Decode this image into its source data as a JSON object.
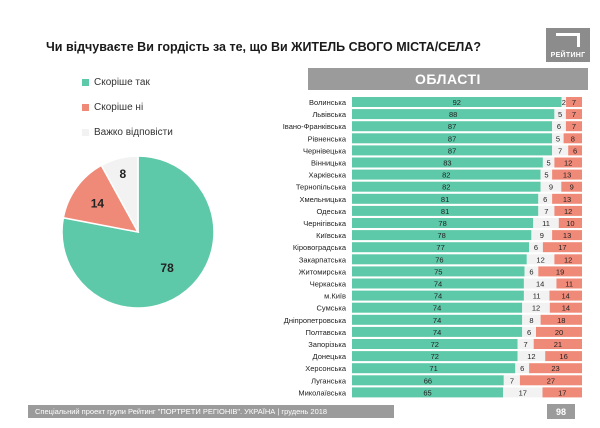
{
  "header": {
    "question": "Чи відчуваєте Ви гордість за те, що Ви ЖИТЕЛЬ СВОГО МІСТА/СЕЛА?",
    "logo_text": "РЕЙТИНГ",
    "regions_title": "ОБЛАСТІ"
  },
  "footer": {
    "text": "Спеціальний проект групи Рейтинг \"ПОРТРЕТИ РЕГІОНІВ\". УКРАЇНА | грудень 2018",
    "page": "98"
  },
  "colors": {
    "yes": "#5ec9a8",
    "no": "#f08a78",
    "hard": "#f2f2f2"
  },
  "chart_data": [
    {
      "type": "pie",
      "title": "",
      "legend_position": "top-left",
      "labels": [
        "Скоріше так",
        "Скоріше ні",
        "Важко відповісти"
      ],
      "values": [
        78,
        14,
        8
      ]
    },
    {
      "type": "bar",
      "orientation": "horizontal",
      "stacked": true,
      "title": "ОБЛАСТІ",
      "categories": [
        "Волинська",
        "Львівська",
        "Івано-Франківська",
        "Рівненська",
        "Чернівецька",
        "Вінницька",
        "Харківська",
        "Тернопільська",
        "Хмельницька",
        "Одеська",
        "Чернігівська",
        "Київська",
        "Кіровоградська",
        "Закарпатська",
        "Житомирська",
        "Черкаська",
        "м.Київ",
        "Сумська",
        "Дніпропетровська",
        "Полтавська",
        "Запорізька",
        "Донецька",
        "Херсонська",
        "Луганська",
        "Миколаївська"
      ],
      "series": [
        {
          "name": "Скоріше так",
          "values": [
            92,
            88,
            87,
            87,
            87,
            83,
            82,
            82,
            81,
            81,
            78,
            78,
            77,
            76,
            75,
            74,
            74,
            74,
            74,
            74,
            72,
            72,
            71,
            66,
            65
          ]
        },
        {
          "name": "Важко відповісти",
          "values": [
            2,
            5,
            6,
            5,
            7,
            5,
            5,
            9,
            6,
            7,
            11,
            9,
            6,
            12,
            6,
            14,
            11,
            12,
            8,
            6,
            7,
            12,
            6,
            7,
            17
          ]
        },
        {
          "name": "Скоріше ні",
          "values": [
            7,
            7,
            7,
            8,
            6,
            12,
            13,
            9,
            13,
            12,
            10,
            13,
            17,
            12,
            19,
            11,
            14,
            14,
            18,
            20,
            21,
            16,
            23,
            27,
            17
          ]
        }
      ]
    }
  ]
}
